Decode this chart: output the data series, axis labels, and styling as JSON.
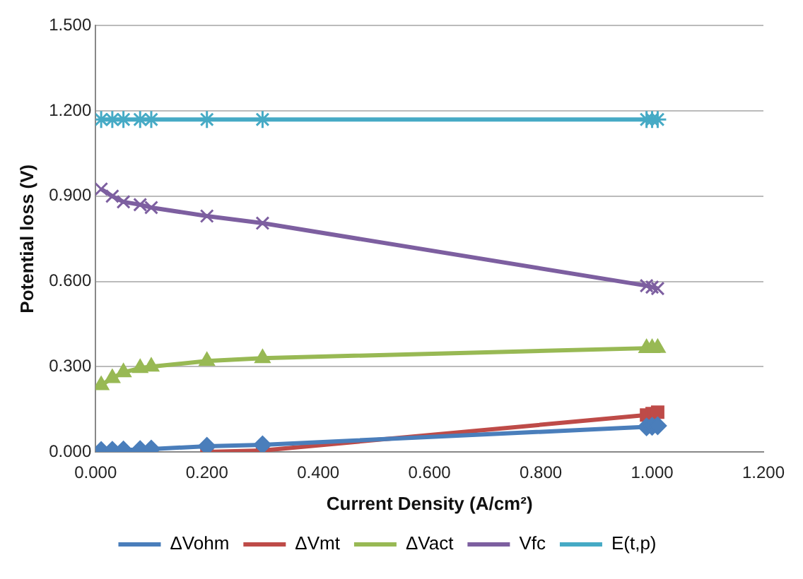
{
  "chart_data": {
    "type": "line",
    "xlabel": "Current Density (A/cm²)",
    "ylabel": "Potential loss (V)",
    "xlim": [
      0,
      1.2
    ],
    "xticks": [
      {
        "value": 0,
        "label": "0.000"
      },
      {
        "value": 0.2,
        "label": "0.200"
      },
      {
        "value": 0.4,
        "label": "0.400"
      },
      {
        "value": 0.6,
        "label": "0.600"
      },
      {
        "value": 0.8,
        "label": "0.800"
      },
      {
        "value": 1,
        "label": "1.000"
      },
      {
        "value": 1.2,
        "label": "1.200"
      }
    ],
    "ylim": [
      0,
      1.5
    ],
    "yticks": [
      {
        "value": 0,
        "label": "0.000"
      },
      {
        "value": 0.3,
        "label": "0.300"
      },
      {
        "value": 0.6,
        "label": "0.600"
      },
      {
        "value": 0.9,
        "label": "0.900"
      },
      {
        "value": 1.2,
        "label": "1.200"
      },
      {
        "value": 1.5,
        "label": "1.500"
      }
    ],
    "grid": "y",
    "legend": "bottom",
    "series": [
      {
        "name": "ΔVohm",
        "color": "#4a7ebb",
        "marker": "diamond",
        "x": [
          0.01,
          0.03,
          0.05,
          0.08,
          0.1,
          0.2,
          0.3,
          0.99,
          1.0,
          1.01
        ],
        "values": [
          0.005,
          0.006,
          0.007,
          0.008,
          0.01,
          0.02,
          0.025,
          0.088,
          0.09,
          0.092
        ]
      },
      {
        "name": "ΔVmt",
        "color": "#be4b48",
        "marker": "square",
        "x": [
          0.2,
          0.3,
          0.99,
          1.0,
          1.01
        ],
        "values": [
          0.0,
          0.005,
          0.13,
          0.135,
          0.14
        ]
      },
      {
        "name": "ΔVact",
        "color": "#98b954",
        "marker": "triangle",
        "x": [
          0.01,
          0.03,
          0.05,
          0.08,
          0.1,
          0.2,
          0.3,
          0.99,
          1.0,
          1.01
        ],
        "values": [
          0.235,
          0.26,
          0.28,
          0.295,
          0.3,
          0.32,
          0.33,
          0.365,
          0.365,
          0.366
        ]
      },
      {
        "name": "Vfc",
        "color": "#7d5fa0",
        "marker": "cross",
        "x": [
          0.01,
          0.03,
          0.05,
          0.08,
          0.1,
          0.2,
          0.3,
          0.99,
          1.0,
          1.01
        ],
        "values": [
          0.925,
          0.9,
          0.88,
          0.87,
          0.86,
          0.83,
          0.805,
          0.585,
          0.58,
          0.575
        ]
      },
      {
        "name": "E(t,p)",
        "color": "#46aac5",
        "marker": "cross",
        "x": [
          0.01,
          0.03,
          0.05,
          0.08,
          0.1,
          0.2,
          0.3,
          0.99,
          1.0,
          1.01
        ],
        "values": [
          1.17,
          1.17,
          1.17,
          1.17,
          1.17,
          1.17,
          1.17,
          1.17,
          1.17,
          1.17
        ]
      }
    ]
  }
}
